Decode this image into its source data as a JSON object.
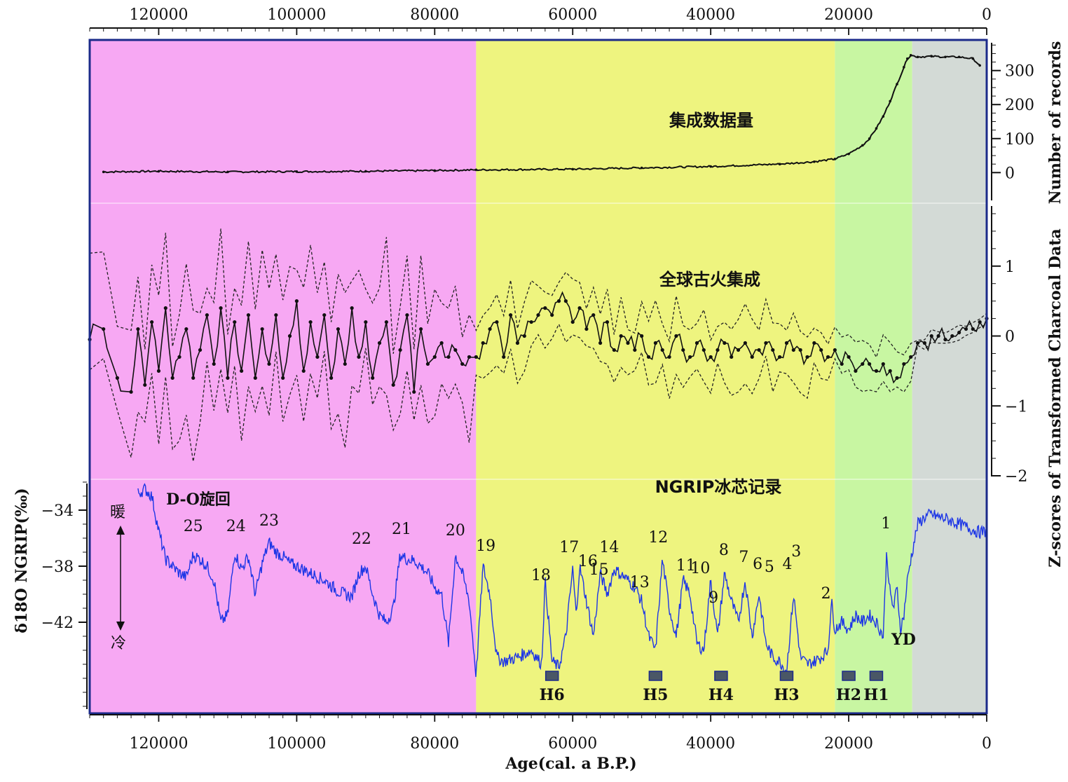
{
  "chart_data": {
    "type": "line",
    "x_axis": {
      "title": "Age(cal. a B.P.)",
      "range": [
        130000,
        0
      ],
      "ticks": [
        120000,
        100000,
        80000,
        60000,
        40000,
        20000,
        0
      ],
      "tick_labels": [
        "120000",
        "100000",
        "80000",
        "60000",
        "40000",
        "20000",
        "0"
      ]
    },
    "periods": [
      {
        "name": "pink",
        "from": 130000,
        "to": 74000,
        "color": "#f7a8f3"
      },
      {
        "name": "yellow",
        "from": 74000,
        "to": 22000,
        "color": "#eef47f"
      },
      {
        "name": "green",
        "from": 22000,
        "to": 10800,
        "color": "#c8f6a2"
      },
      {
        "name": "gray",
        "from": 10800,
        "to": 0,
        "color": "#d3dad6"
      }
    ],
    "panels": [
      {
        "id": "records",
        "label": "集成数据量",
        "ylabel": "Number of records",
        "ylim": [
          -90,
          390
        ],
        "ticks": [
          0,
          100,
          200,
          300
        ],
        "tick_labels": [
          "0",
          "100",
          "200",
          "300"
        ],
        "series": [
          {
            "name": "Number of records",
            "color": "#111111",
            "x": [
              128000,
              120000,
              110000,
              100000,
              90000,
              80000,
              74000,
              60000,
              50000,
              40000,
              30000,
              25000,
              22000,
              20000,
              18000,
              17000,
              16000,
              15000,
              14000,
              13000,
              12000,
              11500,
              11000,
              10000,
              8000,
              6000,
              4000,
              2000,
              1000
            ],
            "y": [
              2,
              4,
              2,
              3,
              4,
              6,
              8,
              10,
              14,
              18,
              25,
              32,
              40,
              55,
              80,
              100,
              130,
              165,
              210,
              260,
              310,
              335,
              345,
              340,
              342,
              340,
              340,
              335,
              315
            ]
          }
        ]
      },
      {
        "id": "charcoal",
        "label": "全球古火集成",
        "ylabel": "Z-scores of Transformed Charcoal Data",
        "ylim": [
          -2.05,
          1.9
        ],
        "ticks": [
          -2,
          -1,
          0,
          1
        ],
        "tick_labels": [
          "−2",
          "−1",
          "0",
          "1"
        ],
        "series": [
          {
            "name": "Z-scores",
            "color": "#111111",
            "style": "solid-dots",
            "x": [
              130000,
              128000,
              126000,
              124000,
              123000,
              122000,
              121000,
              120000,
              119000,
              118000,
              117000,
              116000,
              115000,
              114000,
              113000,
              112000,
              111000,
              110000,
              109000,
              108000,
              107000,
              106000,
              105000,
              104000,
              103000,
              102000,
              101000,
              100000,
              99000,
              98000,
              97000,
              96000,
              95000,
              94000,
              93000,
              92000,
              91000,
              90000,
              89000,
              88000,
              87000,
              86000,
              85000,
              84000,
              83000,
              82000,
              81000,
              80000,
              79000,
              78000,
              77000,
              76000,
              75000,
              74000,
              73000,
              72000,
              71000,
              70000,
              69000,
              68000,
              67000,
              66000,
              65000,
              64000,
              63000,
              62000,
              61000,
              60000,
              59000,
              58000,
              57000,
              56000,
              55000,
              54000,
              53000,
              52000,
              51000,
              50000,
              49000,
              48000,
              47000,
              46000,
              45000,
              44000,
              43000,
              42000,
              41000,
              40000,
              39000,
              38000,
              37000,
              36000,
              35000,
              34000,
              33000,
              32000,
              31000,
              30000,
              29000,
              28000,
              27000,
              26000,
              25000,
              24000,
              23000,
              22000,
              21000,
              20000,
              19000,
              18000,
              17000,
              16000,
              15000,
              14000,
              13000,
              12000,
              11000,
              10000,
              9000,
              8000,
              7000,
              6000,
              5000,
              4000,
              3000,
              2000,
              1000,
              0
            ],
            "y": [
              -0.05,
              0.1,
              -0.6,
              -0.8,
              0.1,
              -0.7,
              0.2,
              -0.5,
              0.4,
              -0.6,
              -0.3,
              0.1,
              -0.6,
              -0.2,
              0.3,
              -0.4,
              0.4,
              -0.6,
              0.2,
              -0.5,
              0.3,
              -0.6,
              0.1,
              -0.4,
              0.3,
              -0.6,
              0.0,
              0.5,
              -0.5,
              0.2,
              -0.3,
              0.3,
              -0.6,
              0.1,
              -0.4,
              0.4,
              -0.3,
              0.2,
              -0.6,
              -0.1,
              0.2,
              -0.7,
              -0.2,
              0.3,
              -0.8,
              0.1,
              -0.4,
              -0.3,
              -0.1,
              -0.3,
              -0.2,
              -0.4,
              -0.3,
              -0.3,
              -0.1,
              0.1,
              0.2,
              -0.3,
              0.3,
              -0.1,
              0.0,
              0.2,
              0.3,
              0.4,
              0.3,
              0.5,
              0.5,
              0.2,
              0.4,
              0.1,
              0.3,
              -0.1,
              0.2,
              -0.2,
              0.0,
              -0.1,
              -0.2,
              0.0,
              -0.3,
              -0.1,
              -0.2,
              -0.3,
              0.0,
              -0.2,
              -0.3,
              -0.1,
              -0.2,
              -0.3,
              -0.2,
              -0.1,
              -0.3,
              -0.2,
              -0.1,
              -0.3,
              -0.2,
              -0.1,
              -0.2,
              -0.3,
              -0.1,
              -0.2,
              -0.2,
              -0.3,
              -0.1,
              -0.2,
              -0.3,
              -0.2,
              -0.4,
              -0.3,
              -0.5,
              -0.4,
              -0.4,
              -0.5,
              -0.4,
              -0.5,
              -0.6,
              -0.4,
              -0.3,
              -0.1,
              -0.1,
              0.0,
              0.0,
              -0.05,
              0.0,
              0.05,
              0.1,
              0.1,
              0.2,
              0.25
            ]
          }
        ]
      },
      {
        "id": "ngrip",
        "label": "NGRIP冰芯记录",
        "ylabel": "δ18O NGRIP(‰)",
        "ylim": [
          -48.5,
          -31.8
        ],
        "ticks": [
          -42,
          -38,
          -34
        ],
        "tick_labels": [
          "−42",
          "−38",
          "−34"
        ],
        "series": [
          {
            "name": "NGRIP δ18O",
            "color": "#1d36e6",
            "x": [
              123000,
              122000,
              121000,
              120000,
              119000,
              118000,
              117000,
              116000,
              115000,
              114000,
              113000,
              112000,
              111000,
              110000,
              109000,
              108000,
              107000,
              106000,
              105000,
              104000,
              103000,
              102000,
              101000,
              100000,
              98000,
              96000,
              94000,
              92000,
              91000,
              90000,
              89000,
              88000,
              87000,
              86000,
              85000,
              84000,
              83000,
              82000,
              81000,
              80000,
              79000,
              78000,
              77000,
              76000,
              75000,
              74000,
              73000,
              72000,
              71000,
              70000,
              68000,
              66000,
              64500,
              64000,
              63000,
              62000,
              61000,
              60000,
              59500,
              59000,
              58000,
              57000,
              56000,
              55000,
              54000,
              53000,
              52000,
              51000,
              50000,
              49000,
              48000,
              47000,
              46000,
              45000,
              44000,
              43000,
              42000,
              41000,
              40000,
              39000,
              38000,
              37000,
              36000,
              35000,
              34000,
              33000,
              32000,
              31000,
              30000,
              29000,
              28000,
              27000,
              26000,
              25000,
              24000,
              23000,
              22500,
              22000,
              21000,
              20000,
              19000,
              18000,
              17000,
              16000,
              15000,
              14500,
              14000,
              13500,
              13000,
              12500,
              12000,
              11500,
              11000,
              10000,
              9000,
              8000,
              7000,
              6000,
              5000,
              4000,
              3000,
              2000,
              1000,
              0
            ],
            "y": [
              -32.8,
              -32.5,
              -33.0,
              -35.5,
              -37.5,
              -38.0,
              -38.5,
              -38.8,
              -37.2,
              -37.5,
              -38.0,
              -39.0,
              -42.0,
              -41.5,
              -37.0,
              -38.2,
              -37.3,
              -40.0,
              -37.8,
              -36.3,
              -37.0,
              -37.3,
              -37.8,
              -38.0,
              -38.5,
              -39.0,
              -39.8,
              -40.2,
              -38.5,
              -38.0,
              -40.0,
              -41.5,
              -42.0,
              -41.0,
              -37.2,
              -37.5,
              -37.6,
              -38.0,
              -38.5,
              -39.5,
              -40.0,
              -43.5,
              -37.2,
              -38.5,
              -40.5,
              -45.8,
              -38.0,
              -40.0,
              -44.5,
              -44.8,
              -44.5,
              -44.0,
              -45.0,
              -39.0,
              -44.8,
              -45.2,
              -43.0,
              -38.2,
              -41.5,
              -38.0,
              -40.5,
              -43.0,
              -38.5,
              -40.0,
              -38.2,
              -38.6,
              -39.0,
              -39.5,
              -40.5,
              -43.0,
              -44.0,
              -37.5,
              -41.0,
              -43.0,
              -39.0,
              -40.0,
              -43.5,
              -44.0,
              -39.0,
              -43.0,
              -38.5,
              -40.5,
              -42.0,
              -39.0,
              -43.0,
              -40.0,
              -43.5,
              -44.5,
              -44.8,
              -45.5,
              -40.0,
              -44.5,
              -45.0,
              -44.8,
              -44.5,
              -44.0,
              -40.5,
              -42.5,
              -42.0,
              -42.5,
              -41.5,
              -42.0,
              -41.5,
              -42.0,
              -43.0,
              -37.0,
              -40.0,
              -41.0,
              -39.5,
              -42.5,
              -41.5,
              -39.0,
              -37.5,
              -35.0,
              -34.5,
              -34.3,
              -34.5,
              -34.6,
              -34.8,
              -35.0,
              -35.2,
              -35.4,
              -35.6,
              -35.5
            ]
          }
        ]
      }
    ],
    "ngrip_labels": {
      "title": "D-O旋回",
      "warm": "暖",
      "cold": "冷",
      "yd": "YD",
      "events": [
        {
          "n": "1",
          "x": 14600,
          "y": -35.3
        },
        {
          "n": "2",
          "x": 23300,
          "y": -40.3
        },
        {
          "n": "3",
          "x": 27600,
          "y": -37.3
        },
        {
          "n": "4",
          "x": 28900,
          "y": -38.2
        },
        {
          "n": "5",
          "x": 31500,
          "y": -38.4
        },
        {
          "n": "6",
          "x": 33200,
          "y": -38.2
        },
        {
          "n": "7",
          "x": 35200,
          "y": -37.7
        },
        {
          "n": "8",
          "x": 38100,
          "y": -37.2
        },
        {
          "n": "9",
          "x": 39600,
          "y": -40.6
        },
        {
          "n": "10",
          "x": 41500,
          "y": -38.5
        },
        {
          "n": "11",
          "x": 43600,
          "y": -38.3
        },
        {
          "n": "12",
          "x": 47600,
          "y": -36.3
        },
        {
          "n": "13",
          "x": 50300,
          "y": -39.5
        },
        {
          "n": "14",
          "x": 54700,
          "y": -37.0
        },
        {
          "n": "15",
          "x": 56200,
          "y": -38.6
        },
        {
          "n": "16",
          "x": 57800,
          "y": -38.0
        },
        {
          "n": "17",
          "x": 60500,
          "y": -37.0
        },
        {
          "n": "18",
          "x": 64600,
          "y": -39.0
        },
        {
          "n": "19",
          "x": 72600,
          "y": -36.9
        },
        {
          "n": "20",
          "x": 77000,
          "y": -35.8
        },
        {
          "n": "21",
          "x": 84800,
          "y": -35.7
        },
        {
          "n": "22",
          "x": 90600,
          "y": -36.4
        },
        {
          "n": "23",
          "x": 104000,
          "y": -35.1
        },
        {
          "n": "24",
          "x": 108800,
          "y": -35.5
        },
        {
          "n": "25",
          "x": 115000,
          "y": -35.5
        }
      ],
      "heinrich": [
        {
          "n": "H6",
          "x": 63000
        },
        {
          "n": "H5",
          "x": 48000
        },
        {
          "n": "H4",
          "x": 38500
        },
        {
          "n": "H3",
          "x": 29000
        },
        {
          "n": "H2",
          "x": 20000
        },
        {
          "n": "H1",
          "x": 16000
        }
      ]
    }
  }
}
